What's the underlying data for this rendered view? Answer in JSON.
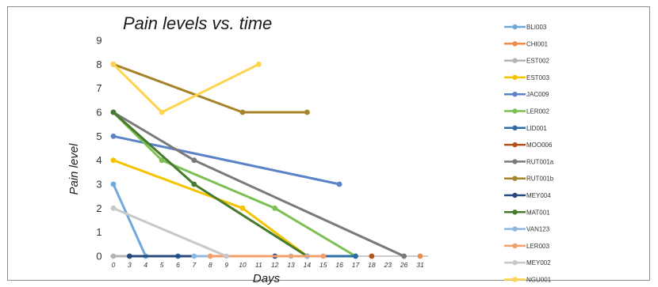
{
  "chart_data": {
    "type": "line",
    "title": "Pain levels vs. time",
    "xlabel": "Days",
    "ylabel": "Pain level",
    "x": [
      "0",
      "3",
      "4",
      "5",
      "6",
      "7",
      "8",
      "9",
      "10",
      "11",
      "12",
      "13",
      "14",
      "15",
      "16",
      "17",
      "18",
      "23",
      "26",
      "31"
    ],
    "ylim": [
      0,
      9
    ],
    "yticks": [
      "0",
      "1",
      "2",
      "3",
      "4",
      "5",
      "6",
      "7",
      "8",
      "9"
    ],
    "legend_position": "right",
    "series": [
      {
        "name": "BLI003",
        "color": "#6fa8dc",
        "points": [
          [
            "0",
            3
          ],
          [
            "4",
            0
          ]
        ]
      },
      {
        "name": "CHI001",
        "color": "#ef8c4a",
        "points": [
          [
            "31",
            0
          ]
        ]
      },
      {
        "name": "EST002",
        "color": "#b3b3b3",
        "points": [
          [
            "0",
            0
          ],
          [
            "13",
            0
          ]
        ]
      },
      {
        "name": "EST003",
        "color": "#f5c400",
        "points": [
          [
            "0",
            4
          ],
          [
            "10",
            2
          ],
          [
            "14",
            0
          ]
        ]
      },
      {
        "name": "JAC009",
        "color": "#5b83c7",
        "points": [
          [
            "0",
            5
          ],
          [
            "16",
            3
          ]
        ]
      },
      {
        "name": "LER002",
        "color": "#7dbf52",
        "points": [
          [
            "0",
            6
          ],
          [
            "5",
            4
          ],
          [
            "12",
            2
          ],
          [
            "17",
            0
          ]
        ]
      },
      {
        "name": "LID001",
        "color": "#2e6da4",
        "points": [
          [
            "6",
            0
          ],
          [
            "17",
            0
          ]
        ]
      },
      {
        "name": "MOO006",
        "color": "#b5521b",
        "points": [
          [
            "18",
            0
          ]
        ]
      },
      {
        "name": "RUT001a",
        "color": "#7a7a7a",
        "points": [
          [
            "0",
            6
          ],
          [
            "7",
            4
          ],
          [
            "26",
            0
          ]
        ]
      },
      {
        "name": "RUT001b",
        "color": "#a6852a",
        "points": [
          [
            "0",
            8
          ],
          [
            "10",
            6
          ],
          [
            "14",
            6
          ]
        ]
      },
      {
        "name": "MEY004",
        "color": "#27487a",
        "points": [
          [
            "3",
            0
          ],
          [
            "12",
            0
          ]
        ]
      },
      {
        "name": "MAT001",
        "color": "#467a2e",
        "points": [
          [
            "0",
            6
          ],
          [
            "7",
            3
          ],
          [
            "14",
            0
          ]
        ]
      },
      {
        "name": "VAN123",
        "color": "#8fb8e0",
        "points": [
          [
            "7",
            0
          ],
          [
            "14",
            0
          ]
        ]
      },
      {
        "name": "LER003",
        "color": "#f29f6b",
        "points": [
          [
            "8",
            0
          ],
          [
            "15",
            0
          ]
        ]
      },
      {
        "name": "MEY002",
        "color": "#c8c8c8",
        "points": [
          [
            "0",
            2
          ],
          [
            "9",
            0
          ]
        ]
      },
      {
        "name": "NGU001",
        "color": "#ffd34d",
        "points": [
          [
            "0",
            8
          ],
          [
            "5",
            6
          ],
          [
            "11",
            8
          ]
        ]
      }
    ]
  }
}
